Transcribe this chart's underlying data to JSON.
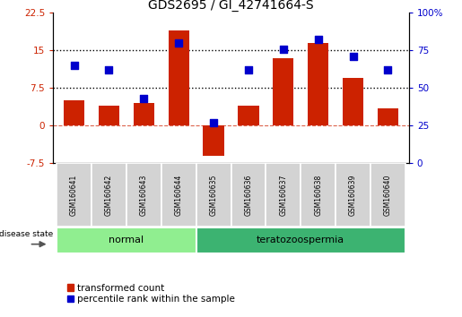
{
  "title": "GDS2695 / GI_42741664-S",
  "samples": [
    "GSM160641",
    "GSM160642",
    "GSM160643",
    "GSM160644",
    "GSM160635",
    "GSM160636",
    "GSM160637",
    "GSM160638",
    "GSM160639",
    "GSM160640"
  ],
  "transformed_count": [
    5.0,
    4.0,
    4.5,
    19.0,
    -6.0,
    4.0,
    13.5,
    16.5,
    9.5,
    3.5
  ],
  "percentile_rank": [
    65,
    62,
    43,
    80,
    27,
    62,
    76,
    82,
    71,
    62
  ],
  "ylim_left": [
    -7.5,
    22.5
  ],
  "ylim_right": [
    0,
    100
  ],
  "yticks_left": [
    -7.5,
    0,
    7.5,
    15,
    22.5
  ],
  "yticks_right": [
    0,
    25,
    50,
    75,
    100
  ],
  "ytick_labels_left": [
    "-7.5",
    "0",
    "7.5",
    "15",
    "22.5"
  ],
  "ytick_labels_right": [
    "0",
    "25",
    "50",
    "75",
    "100%"
  ],
  "hlines": [
    7.5,
    15
  ],
  "zero_line": 0,
  "groups": [
    {
      "label": "normal",
      "start": 0,
      "end": 4,
      "color": "#90EE90"
    },
    {
      "label": "teratozoospermia",
      "start": 4,
      "end": 10,
      "color": "#3CB371"
    }
  ],
  "bar_color": "#CC2200",
  "dot_color": "#0000CC",
  "bar_width": 0.6,
  "dot_size": 40,
  "left_tick_color": "#CC2200",
  "right_tick_color": "#0000CC",
  "bg_color": "#FFFFFF",
  "plot_bg_color": "#FFFFFF",
  "zero_line_color": "#CC2200",
  "title_fontsize": 10,
  "legend_label_red": "transformed count",
  "legend_label_blue": "percentile rank within the sample",
  "disease_state_label": "disease state"
}
